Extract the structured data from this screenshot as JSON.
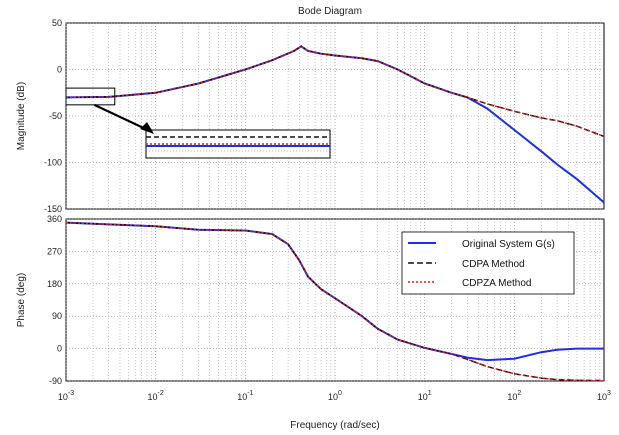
{
  "chart_data": {
    "type": "line",
    "title": "Bode Diagram",
    "xlabel": "Frequency  (rad/sec)",
    "xscale": "log",
    "xlim": [
      0.001,
      1000
    ],
    "x_tick_labels": [
      {
        "value": 0.001,
        "base": "10",
        "exp": "-3"
      },
      {
        "value": 0.01,
        "base": "10",
        "exp": "-2"
      },
      {
        "value": 0.1,
        "base": "10",
        "exp": "-1"
      },
      {
        "value": 1,
        "base": "10",
        "exp": "0"
      },
      {
        "value": 10,
        "base": "10",
        "exp": "1"
      },
      {
        "value": 100,
        "base": "10",
        "exp": "2"
      },
      {
        "value": 1000,
        "base": "10",
        "exp": "3"
      }
    ],
    "grid": true,
    "legend_placement": "upper-right of phase plot",
    "colors": {
      "original": "#1f2ee0",
      "cdpa": "#111111",
      "cdpza": "#cc2222"
    },
    "inset": {
      "description": "zoom box on low-frequency magnitude with arrow",
      "box_range_x": [
        0.001,
        0.0035
      ],
      "box_range_y": [
        -38,
        -20
      ]
    },
    "panels": [
      {
        "name": "magnitude",
        "ylabel": "Magnitude (dB)",
        "ylim": [
          -150,
          50
        ],
        "yticks": [
          50,
          0,
          -50,
          -100,
          -150
        ],
        "series": [
          {
            "name": "Original System G(s)",
            "style": "solid",
            "x": [
              0.001,
              0.003,
              0.01,
              0.03,
              0.1,
              0.2,
              0.35,
              0.42,
              0.5,
              0.7,
              1,
              2,
              3,
              5,
              10,
              20,
              30,
              50,
              100,
              200,
              300,
              500,
              1000
            ],
            "y": [
              -30,
              -29.5,
              -25,
              -15,
              0,
              10,
              20,
              25,
              20,
              17,
              15,
              12,
              9,
              0,
              -15,
              -25,
              -30,
              -42,
              -65,
              -88,
              -102,
              -118,
              -143
            ]
          },
          {
            "name": "CDPA Method",
            "style": "dashed",
            "x": [
              0.001,
              0.003,
              0.01,
              0.03,
              0.1,
              0.2,
              0.35,
              0.42,
              0.5,
              0.7,
              1,
              2,
              3,
              5,
              10,
              20,
              30,
              50,
              100,
              200,
              300,
              500,
              1000
            ],
            "y": [
              -30,
              -29.5,
              -25,
              -15,
              0,
              10,
              20,
              25,
              20,
              17,
              15,
              12,
              9,
              0,
              -15,
              -25,
              -30,
              -37,
              -45,
              -52,
              -55,
              -61,
              -72
            ]
          },
          {
            "name": "CDPZA Method",
            "style": "dotted",
            "x": [
              0.001,
              0.003,
              0.01,
              0.03,
              0.1,
              0.2,
              0.35,
              0.42,
              0.5,
              0.7,
              1,
              2,
              3,
              5,
              10,
              20,
              30,
              50,
              100,
              200,
              300,
              500,
              1000
            ],
            "y": [
              -30,
              -29.5,
              -25,
              -15,
              0,
              10,
              20,
              25,
              20,
              17,
              15,
              12,
              9,
              0,
              -15,
              -25,
              -30,
              -37,
              -45,
              -52,
              -55,
              -61,
              -72
            ]
          }
        ]
      },
      {
        "name": "phase",
        "ylabel": "Phase (deg)",
        "ylim": [
          -90,
          360
        ],
        "yticks": [
          360,
          270,
          180,
          90,
          0,
          -90
        ],
        "series": [
          {
            "name": "Original System G(s)",
            "style": "solid",
            "x": [
              0.001,
              0.003,
              0.01,
              0.03,
              0.1,
              0.2,
              0.3,
              0.4,
              0.5,
              0.7,
              1,
              2,
              3,
              5,
              10,
              20,
              30,
              50,
              100,
              200,
              300,
              500,
              1000
            ],
            "y": [
              350,
              345,
              340,
              330,
              328,
              318,
              290,
              245,
              200,
              165,
              140,
              90,
              55,
              25,
              2,
              -15,
              -25,
              -32,
              -28,
              -10,
              -3,
              0,
              0
            ]
          },
          {
            "name": "CDPA Method",
            "style": "dashed",
            "x": [
              0.001,
              0.003,
              0.01,
              0.03,
              0.1,
              0.2,
              0.3,
              0.4,
              0.5,
              0.7,
              1,
              2,
              3,
              5,
              10,
              20,
              30,
              50,
              100,
              200,
              300,
              500,
              1000
            ],
            "y": [
              350,
              345,
              340,
              330,
              328,
              318,
              290,
              245,
              200,
              165,
              140,
              90,
              55,
              25,
              2,
              -15,
              -30,
              -50,
              -70,
              -82,
              -86,
              -88,
              -89
            ]
          },
          {
            "name": "CDPZA Method",
            "style": "dotted",
            "x": [
              0.001,
              0.003,
              0.01,
              0.03,
              0.1,
              0.2,
              0.3,
              0.4,
              0.5,
              0.7,
              1,
              2,
              3,
              5,
              10,
              20,
              30,
              50,
              100,
              200,
              300,
              500,
              1000
            ],
            "y": [
              350,
              345,
              340,
              330,
              328,
              318,
              290,
              245,
              200,
              165,
              140,
              90,
              55,
              25,
              2,
              -15,
              -30,
              -50,
              -70,
              -82,
              -86,
              -88,
              -89
            ]
          }
        ],
        "legend": [
          "Original System G(s)",
          "CDPA Method",
          "CDPZA Method"
        ]
      }
    ]
  }
}
